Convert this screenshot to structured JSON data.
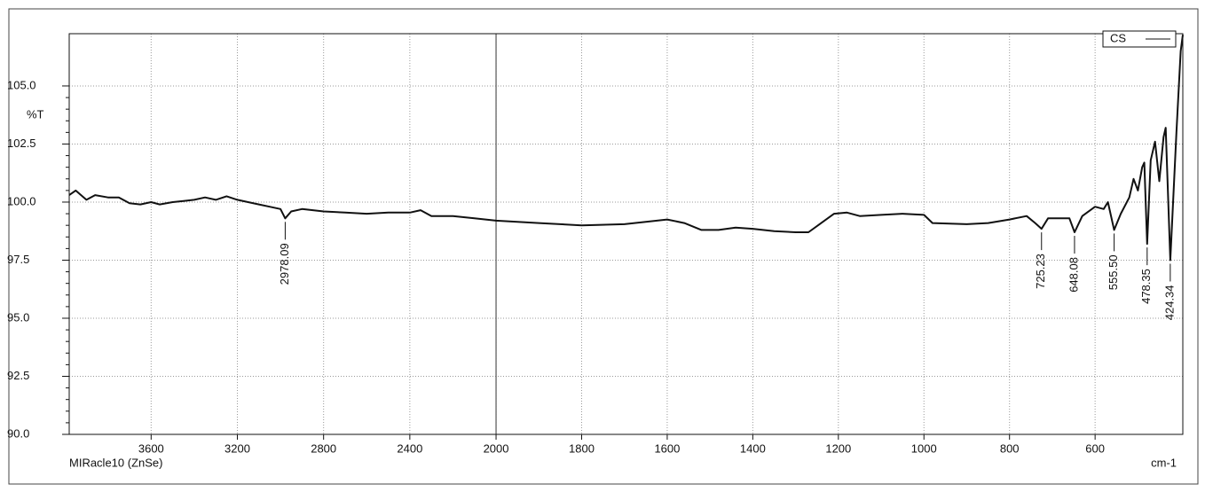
{
  "chart_data": {
    "type": "line",
    "y_label": "%T",
    "x_label": "cm-1",
    "footer": "MIRacle10 (ZnSe)",
    "xlim": [
      3980,
      395
    ],
    "xbreak": 2000,
    "ylim": [
      90,
      107.25
    ],
    "xticks": [
      3600,
      3200,
      2800,
      2400,
      2000,
      1800,
      1600,
      1400,
      1200,
      1000,
      800,
      600
    ],
    "yticks": [
      {
        "value": 90,
        "label": "90.0"
      },
      {
        "value": 92.5,
        "label": "92.5"
      },
      {
        "value": 95,
        "label": "95.0"
      },
      {
        "value": 97.5,
        "label": "97.5"
      },
      {
        "value": 100,
        "label": "100.0"
      },
      {
        "value": 102.5,
        "label": "102.5"
      },
      {
        "value": 105,
        "label": "105.0"
      }
    ],
    "grid": true,
    "legend": "top-right",
    "x": [
      3980,
      3950,
      3900,
      3860,
      3800,
      3750,
      3700,
      3650,
      3600,
      3560,
      3500,
      3450,
      3400,
      3350,
      3300,
      3250,
      3200,
      3150,
      3100,
      3050,
      3000,
      2978.09,
      2950,
      2900,
      2800,
      2700,
      2600,
      2500,
      2400,
      2350,
      2300,
      2200,
      2100,
      2000,
      1900,
      1800,
      1700,
      1650,
      1600,
      1560,
      1520,
      1480,
      1440,
      1400,
      1350,
      1300,
      1270,
      1240,
      1210,
      1180,
      1150,
      1100,
      1050,
      1000,
      980,
      900,
      850,
      800,
      760,
      740,
      725.23,
      710,
      680,
      660,
      648.08,
      630,
      600,
      580,
      570,
      555.5,
      540,
      520,
      510,
      500,
      490,
      485,
      478.35,
      470,
      460,
      450,
      440,
      435,
      424.34,
      410,
      400,
      395
    ],
    "series": [
      {
        "name": "CS",
        "color": "#111111",
        "values": [
          100.3,
          100.5,
          100.1,
          100.3,
          100.2,
          100.2,
          99.95,
          99.9,
          100.0,
          99.9,
          100.0,
          100.05,
          100.1,
          100.2,
          100.1,
          100.25,
          100.1,
          100.0,
          99.9,
          99.8,
          99.7,
          99.3,
          99.6,
          99.7,
          99.6,
          99.55,
          99.5,
          99.55,
          99.55,
          99.65,
          99.4,
          99.4,
          99.3,
          99.2,
          99.1,
          99.0,
          99.05,
          99.15,
          99.25,
          99.1,
          98.8,
          98.8,
          98.9,
          98.85,
          98.75,
          98.7,
          98.7,
          99.1,
          99.5,
          99.55,
          99.4,
          99.45,
          99.5,
          99.45,
          99.1,
          99.05,
          99.1,
          99.25,
          99.4,
          99.1,
          98.85,
          99.3,
          99.3,
          99.3,
          98.7,
          99.4,
          99.8,
          99.7,
          100.0,
          98.8,
          99.5,
          100.2,
          101.0,
          100.5,
          101.5,
          101.7,
          98.2,
          101.8,
          102.6,
          100.9,
          102.8,
          103.2,
          97.5,
          103.0,
          106.5,
          107.2
        ]
      }
    ],
    "peaks": [
      {
        "x": 2978.09,
        "y": 99.3,
        "label": "2978.09"
      },
      {
        "x": 725.23,
        "y": 98.85,
        "label": "725.23"
      },
      {
        "x": 648.08,
        "y": 98.7,
        "label": "648.08"
      },
      {
        "x": 555.5,
        "y": 98.8,
        "label": "555.50"
      },
      {
        "x": 478.35,
        "y": 98.2,
        "label": "478.35"
      },
      {
        "x": 424.34,
        "y": 97.5,
        "label": "424.34"
      }
    ]
  }
}
